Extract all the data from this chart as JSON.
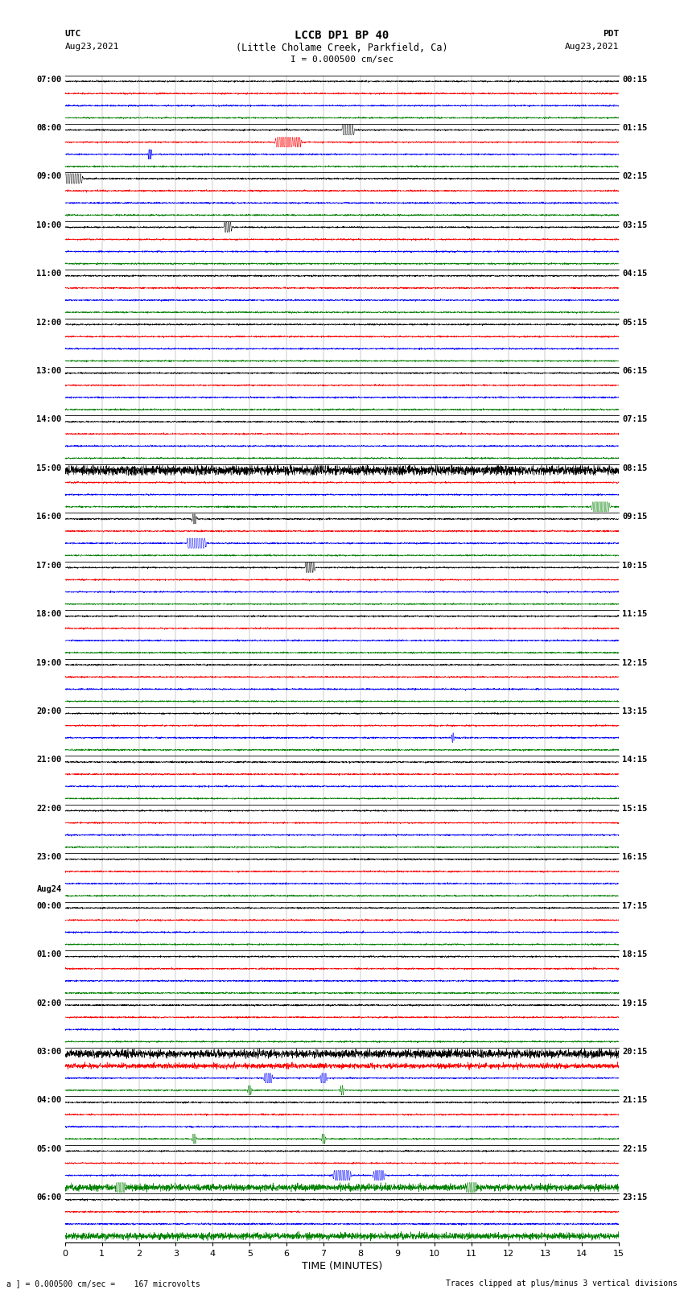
{
  "title_line1": "LCCB DP1 BP 40",
  "title_line2": "(Little Cholame Creek, Parkfield, Ca)",
  "title_line3": "I = 0.000500 cm/sec",
  "left_label": "UTC",
  "left_date": "Aug23,2021",
  "right_label": "PDT",
  "right_date": "Aug23,2021",
  "aug24_label": "Aug24",
  "bottom_label1": "a ] = 0.000500 cm/sec =    167 microvolts",
  "bottom_label2": "Traces clipped at plus/minus 3 vertical divisions",
  "xlabel": "TIME (MINUTES)",
  "xlim": [
    0,
    15
  ],
  "xticks": [
    0,
    1,
    2,
    3,
    4,
    5,
    6,
    7,
    8,
    9,
    10,
    11,
    12,
    13,
    14,
    15
  ],
  "bg_color": "#ffffff",
  "trace_colors": [
    "black",
    "red",
    "blue",
    "green"
  ],
  "n_rows": 24,
  "utc_times": [
    "07:00",
    "08:00",
    "09:00",
    "10:00",
    "11:00",
    "12:00",
    "13:00",
    "14:00",
    "15:00",
    "16:00",
    "17:00",
    "18:00",
    "19:00",
    "20:00",
    "21:00",
    "22:00",
    "23:00",
    "00:00",
    "01:00",
    "02:00",
    "03:00",
    "04:00",
    "05:00",
    "06:00"
  ],
  "pdt_times": [
    "00:15",
    "01:15",
    "02:15",
    "03:15",
    "04:15",
    "05:15",
    "06:15",
    "07:15",
    "08:15",
    "09:15",
    "10:15",
    "11:15",
    "12:15",
    "13:15",
    "14:15",
    "15:15",
    "16:15",
    "17:15",
    "18:15",
    "19:15",
    "20:15",
    "21:15",
    "22:15",
    "23:15"
  ],
  "figsize": [
    8.5,
    16.13
  ],
  "dpi": 100
}
